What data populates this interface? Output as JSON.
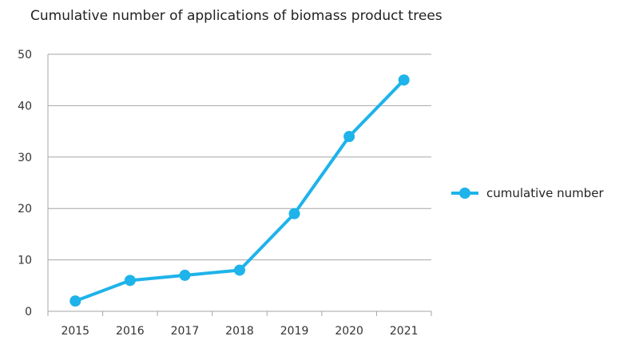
{
  "chart_data": {
    "type": "line",
    "title": "Cumulative number of applications of biomass product trees",
    "categories": [
      "2015",
      "2016",
      "2017",
      "2018",
      "2019",
      "2020",
      "2021"
    ],
    "series": [
      {
        "name": "cumulative number",
        "values": [
          2,
          6,
          7,
          8,
          19,
          34,
          45
        ]
      }
    ],
    "yticks": [
      "0",
      "10",
      "20",
      "30",
      "40",
      "50"
    ],
    "ylim": [
      0,
      50
    ],
    "grid": true,
    "legend_position": "right",
    "colors": {
      "series": "#1eb3ea",
      "grid": "#a6a6a6",
      "axis": "#a6a6a6"
    }
  }
}
